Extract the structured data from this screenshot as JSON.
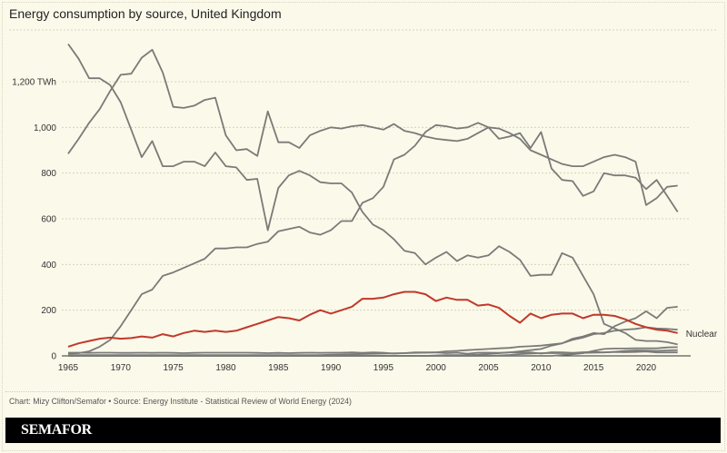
{
  "title": "Energy consumption by source, United Kingdom",
  "source": "Chart: Mizy Clifton/Semafor • Source: Energy Institute - Statistical Review of World Energy (2024)",
  "brand": "SEMAFOR",
  "chart_data": {
    "type": "line",
    "title": "Energy consumption by source, United Kingdom",
    "ylabel_unit": "TWh",
    "ylim": [
      0,
      1400
    ],
    "xlim": [
      1965,
      2023
    ],
    "grid": true,
    "y_ticks": [
      {
        "value": 0,
        "label": "0"
      },
      {
        "value": 200,
        "label": "200"
      },
      {
        "value": 400,
        "label": "400"
      },
      {
        "value": 600,
        "label": "600"
      },
      {
        "value": 800,
        "label": "800"
      },
      {
        "value": 1000,
        "label": "1,000"
      },
      {
        "value": 1200,
        "label": "1,200 TWh"
      }
    ],
    "x_ticks": [
      1965,
      1970,
      1975,
      1980,
      1985,
      1990,
      1995,
      2000,
      2005,
      2010,
      2015,
      2020
    ],
    "x_start": 1965,
    "colors": {
      "default": "#7a7a78",
      "highlight": "#c0392b"
    },
    "series": [
      {
        "values": [
          1365,
          1300,
          1215,
          1215,
          1185,
          1110,
          990,
          870,
          940,
          830,
          830,
          850,
          850,
          830,
          890,
          830,
          825,
          770,
          775,
          550,
          735,
          790,
          810,
          790,
          760,
          755,
          755,
          715,
          630,
          575,
          550,
          510,
          460,
          450,
          400,
          430,
          455,
          415,
          440,
          430,
          440,
          480,
          455,
          420,
          350,
          355,
          355,
          450,
          430,
          350,
          270,
          140,
          120,
          100,
          70,
          65,
          65,
          60,
          50
        ]
      },
      {
        "values": [
          885,
          950,
          1020,
          1080,
          1160,
          1230,
          1235,
          1305,
          1340,
          1240,
          1090,
          1085,
          1095,
          1120,
          1130,
          965,
          900,
          905,
          875,
          1070,
          935,
          935,
          910,
          965,
          985,
          1000,
          995,
          1005,
          1010,
          1000,
          990,
          1015,
          985,
          975,
          960,
          950,
          945,
          940,
          950,
          975,
          1000,
          995,
          975,
          950,
          900,
          880,
          860,
          840,
          830,
          830,
          850,
          870,
          880,
          870,
          850,
          660,
          690,
          740,
          745
        ]
      },
      {
        "values": [
          10,
          12,
          20,
          40,
          70,
          130,
          200,
          270,
          290,
          350,
          365,
          385,
          405,
          425,
          470,
          470,
          475,
          475,
          490,
          500,
          545,
          555,
          565,
          540,
          530,
          550,
          590,
          590,
          670,
          690,
          740,
          860,
          880,
          920,
          980,
          1010,
          1005,
          995,
          1000,
          1020,
          1000,
          950,
          960,
          975,
          910,
          980,
          820,
          770,
          765,
          700,
          720,
          800,
          790,
          790,
          780,
          730,
          770,
          700,
          630
        ]
      },
      {
        "values": [
          0,
          0,
          0,
          0,
          0,
          0,
          0,
          0,
          0,
          0,
          0,
          0,
          0,
          0,
          0,
          0,
          0,
          0,
          0,
          0,
          0,
          0,
          0,
          0,
          0,
          0,
          0,
          0,
          0,
          0,
          0,
          0,
          0,
          0,
          0,
          2,
          3,
          3,
          3,
          5,
          8,
          12,
          15,
          20,
          25,
          30,
          45,
          55,
          75,
          85,
          100,
          95,
          130,
          150,
          165,
          195,
          165,
          210,
          215
        ]
      },
      {
        "values": [
          3,
          3,
          3,
          3,
          3,
          3,
          3,
          3,
          3,
          3,
          3,
          3,
          3,
          3,
          3,
          3,
          3,
          3,
          3,
          3,
          3,
          3,
          3,
          3,
          3,
          5,
          6,
          7,
          8,
          9,
          10,
          11,
          12,
          13,
          14,
          15,
          20,
          22,
          25,
          28,
          30,
          33,
          35,
          40,
          42,
          45,
          50,
          55,
          70,
          80,
          95,
          100,
          110,
          115,
          118,
          125,
          120,
          118,
          115
        ]
      },
      {
        "values": [
          14,
          14,
          13,
          14,
          14,
          13,
          13,
          14,
          13,
          14,
          13,
          12,
          13,
          14,
          14,
          14,
          14,
          14,
          13,
          12,
          13,
          12,
          13,
          14,
          13,
          14,
          14,
          15,
          13,
          15,
          14,
          10,
          12,
          15,
          15,
          15,
          12,
          14,
          9,
          14,
          14,
          13,
          15,
          15,
          15,
          10,
          16,
          15,
          13,
          16,
          17,
          15,
          17,
          16,
          17,
          19,
          15,
          15,
          15
        ]
      },
      {
        "values": [
          0,
          0,
          0,
          0,
          0,
          0,
          0,
          0,
          0,
          0,
          0,
          0,
          0,
          0,
          0,
          0,
          0,
          0,
          0,
          0,
          0,
          0,
          0,
          0,
          0,
          0,
          0,
          0,
          0,
          0,
          0,
          0,
          0,
          0,
          0,
          0,
          0,
          0,
          0,
          0,
          0,
          0,
          0,
          0,
          0,
          0,
          0,
          4,
          7,
          12,
          22,
          30,
          32,
          32,
          33,
          33,
          33,
          37,
          38
        ]
      },
      {
        "values": [
          0,
          0,
          0,
          0,
          0,
          0,
          0,
          0,
          0,
          0,
          0,
          0,
          0,
          0,
          0,
          0,
          0,
          0,
          0,
          0,
          0,
          0,
          0,
          0,
          0,
          0,
          0,
          0,
          0,
          0,
          0,
          0,
          0,
          0,
          0,
          0,
          0,
          0,
          0,
          0,
          0,
          2,
          4,
          8,
          10,
          12,
          12,
          12,
          12,
          13,
          14,
          15,
          18,
          22,
          24,
          23,
          22,
          24,
          25
        ]
      },
      {
        "name": "Nuclear",
        "highlight": true,
        "values": [
          40,
          55,
          65,
          75,
          80,
          75,
          78,
          85,
          80,
          95,
          85,
          100,
          110,
          105,
          110,
          105,
          110,
          125,
          140,
          155,
          170,
          165,
          155,
          180,
          200,
          185,
          200,
          215,
          250,
          250,
          255,
          270,
          280,
          280,
          270,
          240,
          255,
          245,
          245,
          220,
          225,
          210,
          175,
          145,
          185,
          165,
          180,
          185,
          185,
          165,
          180,
          180,
          175,
          160,
          140,
          125,
          115,
          110,
          100
        ]
      }
    ]
  }
}
